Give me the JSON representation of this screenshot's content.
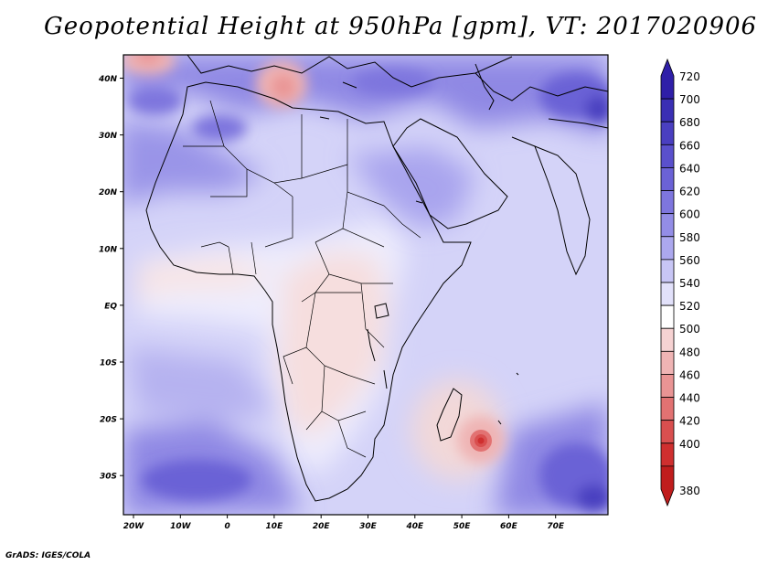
{
  "title": "Geopotential Height at 950hPa [gpm], VT: 2017020906",
  "credit": "GrADS: IGES/COLA",
  "map": {
    "lon_labels": [
      "20W",
      "10W",
      "0",
      "10E",
      "20E",
      "30E",
      "40E",
      "50E",
      "60E",
      "70E"
    ],
    "lat_labels": [
      "40N",
      "30N",
      "20N",
      "10N",
      "EQ",
      "10S",
      "20S",
      "30S"
    ]
  },
  "colorbar": {
    "labels": [
      "720",
      "700",
      "680",
      "660",
      "640",
      "620",
      "600",
      "580",
      "560",
      "540",
      "520",
      "500",
      "480",
      "460",
      "440",
      "420",
      "400",
      "380"
    ],
    "colors": [
      "#2f1fa8",
      "#3a2fb4",
      "#4a3fc0",
      "#5a50cc",
      "#6b62d6",
      "#7e76de",
      "#938de6",
      "#aca8ee",
      "#c8c6f5",
      "#e2e1fa",
      "#ffffff",
      "#f6d2d2",
      "#efb4b4",
      "#e99494",
      "#e27272",
      "#d94f4f",
      "#cf2f2f",
      "#c01d1d"
    ]
  }
}
